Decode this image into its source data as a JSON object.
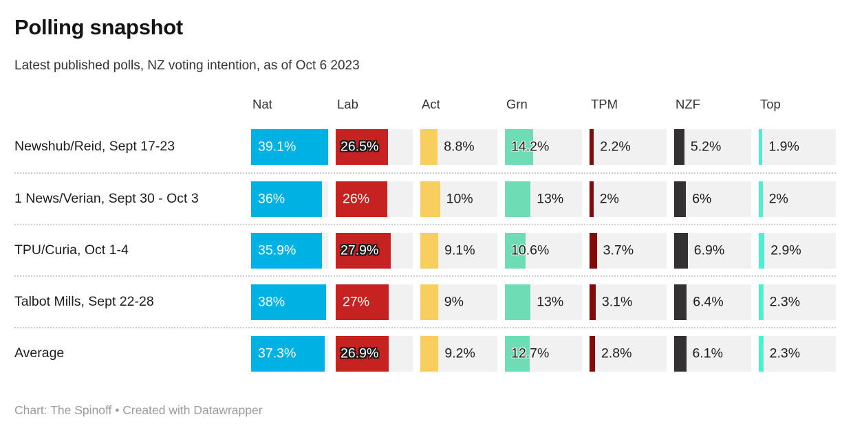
{
  "header": {
    "title": "Polling snapshot",
    "subtitle": "Latest published polls, NZ voting intention, as of Oct 6 2023"
  },
  "footer": {
    "credit": "Chart: The Spinoff • Created with Datawrapper"
  },
  "colors": {
    "cell_background": "#f1f1f1",
    "separator": "#cccccc"
  },
  "chart_data": {
    "type": "table",
    "title": "Polling snapshot",
    "subtitle": "Latest published polls, NZ voting intention, as of Oct 6 2023",
    "columns": [
      "Nat",
      "Lab",
      "Act",
      "Grn",
      "TPM",
      "NZF",
      "Top"
    ],
    "column_colors": {
      "Nat": "#00b2e4",
      "Lab": "#c52221",
      "Act": "#f8ce5e",
      "Grn": "#6edcb5",
      "TPM": "#800b0b",
      "NZF": "#333131",
      "Top": "#50eed0"
    },
    "scale_max": 39.1,
    "legend_position": "top",
    "rows": [
      {
        "label": "Newshub/Reid, Sept 17-23",
        "values": [
          39.1,
          26.5,
          8.8,
          14.2,
          2.2,
          5.2,
          1.9
        ],
        "labels": [
          "39.1%",
          "26.5%",
          "8.8%",
          "14.2%",
          "2.2%",
          "5.2%",
          "1.9%"
        ]
      },
      {
        "label": "1 News/Verian, Sept 30 - Oct 3",
        "values": [
          36,
          26,
          10,
          13,
          2,
          6,
          2
        ],
        "labels": [
          "36%",
          "26%",
          "10%",
          "13%",
          "2%",
          "6%",
          "2%"
        ]
      },
      {
        "label": "TPU/Curia, Oct 1-4",
        "values": [
          35.9,
          27.9,
          9.1,
          10.6,
          3.7,
          6.9,
          2.9
        ],
        "labels": [
          "35.9%",
          "27.9%",
          "9.1%",
          "10.6%",
          "3.7%",
          "6.9%",
          "2.9%"
        ]
      },
      {
        "label": "Talbot Mills, Sept 22-28",
        "values": [
          38,
          27,
          9,
          13,
          3.1,
          6.4,
          2.3
        ],
        "labels": [
          "38%",
          "27%",
          "9%",
          "13%",
          "3.1%",
          "6.4%",
          "2.3%"
        ]
      },
      {
        "label": "Average",
        "values": [
          37.3,
          26.9,
          9.2,
          12.7,
          2.8,
          6.1,
          2.3
        ],
        "labels": [
          "37.3%",
          "26.9%",
          "9.2%",
          "12.7%",
          "2.8%",
          "6.1%",
          "2.3%"
        ]
      }
    ]
  }
}
